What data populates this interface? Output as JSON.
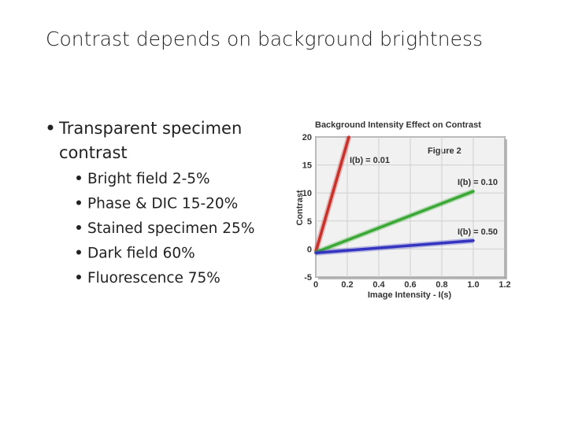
{
  "slide": {
    "title": "Contrast depends on background brightness",
    "bullet": "Transparent specimen contrast",
    "subbullets": [
      "Bright field 2-5%",
      "Phase & DIC 15-20%",
      "Stained specimen 25%",
      "Dark field 60%",
      "Fluorescence 75%"
    ]
  },
  "chart_data": {
    "type": "line",
    "title": "Background Intensity Effect on Contrast",
    "annotation": "Figure 2",
    "xlabel": "Image Intensity - I(s)",
    "ylabel": "Contrast",
    "xlim": [
      0,
      1.2
    ],
    "ylim": [
      -5,
      20
    ],
    "xticks": [
      0,
      0.2,
      0.4,
      0.6,
      0.8,
      {
        "value": 1,
        "label": "1.0"
      },
      1.2
    ],
    "yticks": [
      -5,
      0,
      5,
      10,
      15,
      20
    ],
    "grid": true,
    "series": [
      {
        "name": "I(b) = 0.01",
        "color": "#c8302a",
        "x": [
          0,
          0.21
        ],
        "values": [
          -0.5,
          20
        ]
      },
      {
        "name": "I(b) = 0.10",
        "color": "#3aa835",
        "x": [
          0,
          1
        ],
        "values": [
          -0.6,
          10.3
        ]
      },
      {
        "name": "I(b) = 0.50",
        "color": "#3434c0",
        "x": [
          0,
          1
        ],
        "values": [
          -0.7,
          1.5
        ]
      }
    ]
  }
}
